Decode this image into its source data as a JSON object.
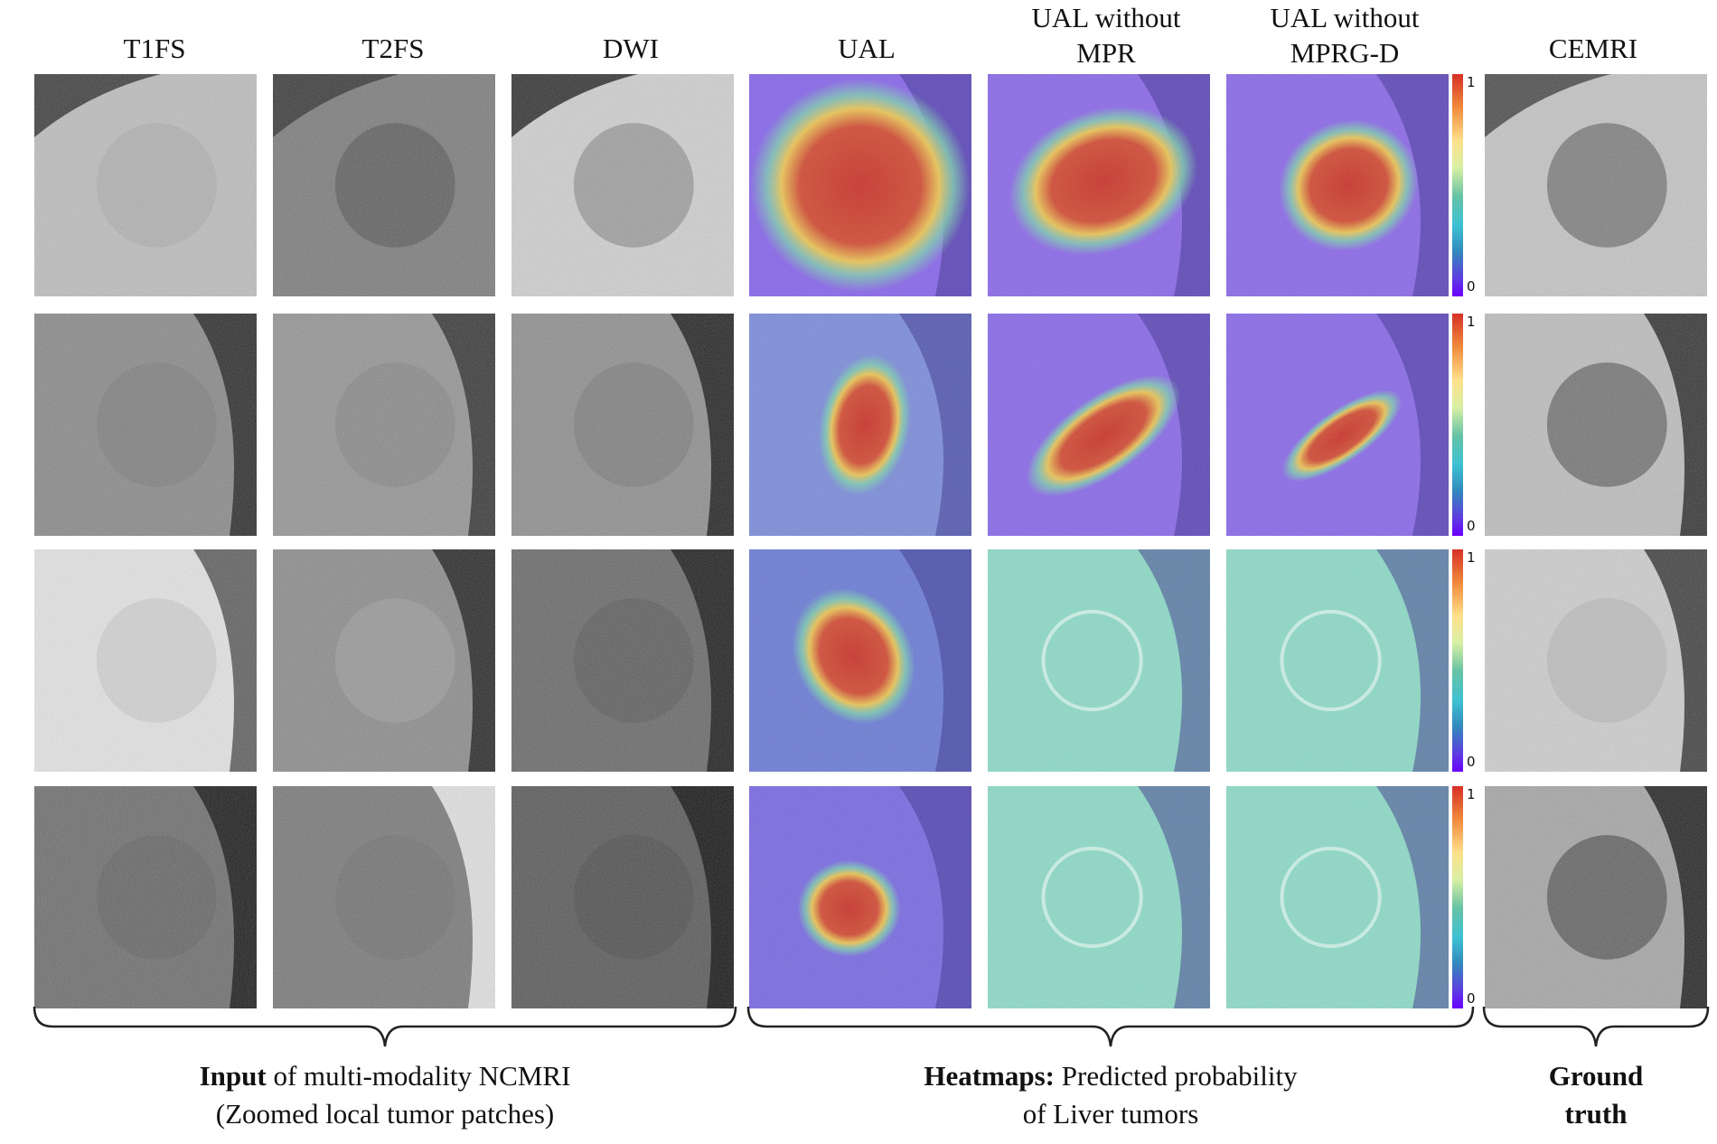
{
  "columns": [
    {
      "line1": "T1FS",
      "line2": ""
    },
    {
      "line1": "T2FS",
      "line2": ""
    },
    {
      "line1": "DWI",
      "line2": ""
    },
    {
      "line1": "UAL",
      "line2": ""
    },
    {
      "line1": "UAL without",
      "line2": "MPR"
    },
    {
      "line1": "UAL without",
      "line2": "MPRG-D"
    },
    {
      "line1": "CEMRI",
      "line2": ""
    }
  ],
  "colorbar": {
    "max_label": "1",
    "min_label": "0"
  },
  "captions": {
    "input": {
      "bold": "Input",
      "rest": " of multi-modality NCMRI",
      "line2": "(Zoomed local tumor patches)"
    },
    "heatmaps": {
      "bold": "Heatmaps:",
      "rest": " Predicted probability",
      "line2": "of Liver tumors"
    },
    "ground_truth": {
      "bold": "Ground",
      "rest": "",
      "line2": "truth"
    }
  }
}
